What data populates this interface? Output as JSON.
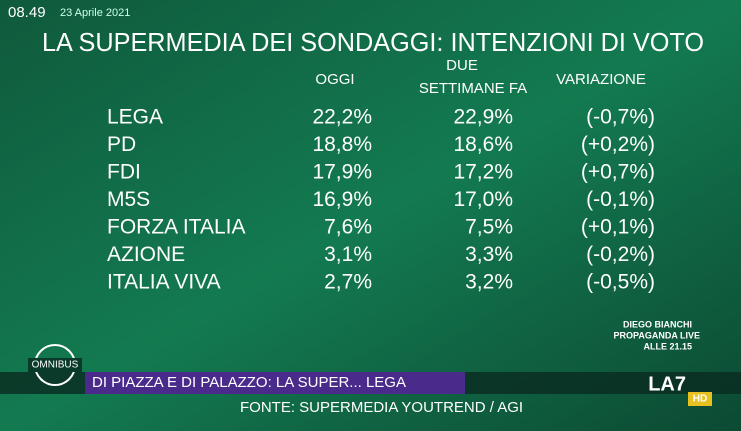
{
  "header": {
    "time": "08.49",
    "date": "23 Aprile 2021",
    "title": "LA SUPERMEDIA DEI SONDAGGI: INTENZIONI DI VOTO"
  },
  "table": {
    "columns": [
      "OGGI",
      [
        "DUE",
        "SETTIMANE FA"
      ],
      "VARIAZIONE"
    ],
    "rows": [
      [
        "LEGA",
        "22,2%",
        "22,9%",
        "(-0,7%)"
      ],
      [
        "PD",
        "18,8%",
        "18,6%",
        "(+0,2%)"
      ],
      [
        "FDI",
        "17,9%",
        "17,2%",
        "(+0,7%)"
      ],
      [
        "M5S",
        "16,9%",
        "17,0%",
        "(-0,1%)"
      ],
      [
        "FORZA ITALIA",
        "7,6%",
        "7,5%",
        "(+0,1%)"
      ],
      [
        "AZIONE",
        "3,1%",
        "3,3%",
        "(-0,2%)"
      ],
      [
        "ITALIA VIVA",
        "2,7%",
        "3,2%",
        "(-0,5%)"
      ]
    ]
  },
  "promo": [
    "DIEGO BIANCHI",
    "PROPAGANDA LIVE",
    "ALLE 21.15"
  ],
  "footer": {
    "logo": "OMNIBUS",
    "banner": "DI PIAZZA E DI PALAZZO: LA SUPER... LEGA",
    "source": "FONTE: SUPERMEDIA YOUTREND / AGI",
    "channel": "LA7",
    "hd": "HD"
  }
}
